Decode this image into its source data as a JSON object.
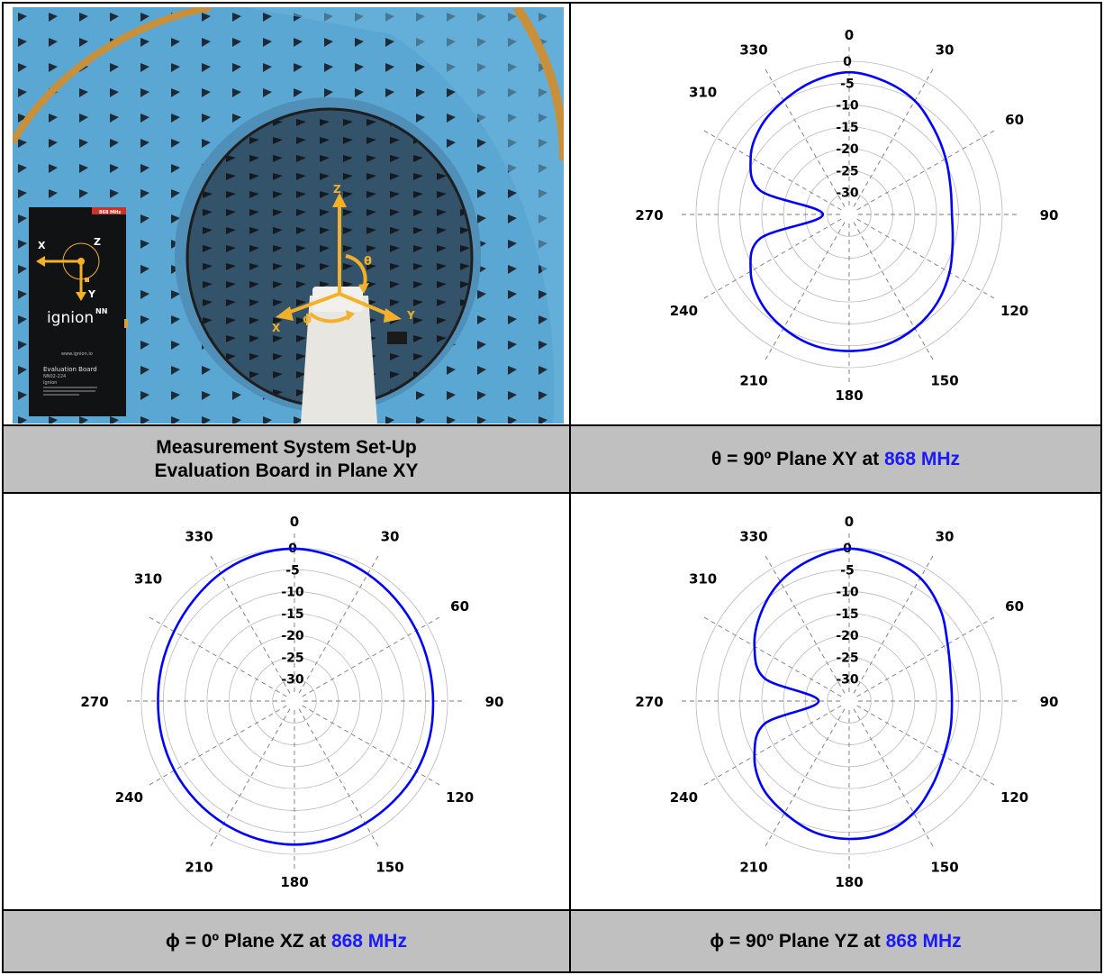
{
  "photo": {
    "axes": {
      "x": "X",
      "y": "Y",
      "z": "Z",
      "theta": "θ",
      "phi": "ϕ"
    },
    "board": {
      "axes": {
        "x": "X",
        "y": "Y",
        "z": "Z"
      },
      "brand": "ignion",
      "brand_mark": "NN",
      "website": "www.ignion.io",
      "title": "Evaluation Board",
      "part": "NN02-224",
      "company": "Ignion",
      "tag": "868 MHz"
    },
    "colors": {
      "chamber": "#5aa7d3",
      "absorber": "#23272c",
      "axes": "#f3b12a"
    }
  },
  "captions": {
    "setup": {
      "line1": "Measurement System Set-Up",
      "line2": "Evaluation Board in Plane XY"
    },
    "xy": {
      "prefix": "θ = 90º Plane XY at ",
      "freq": "868 MHz"
    },
    "xz": {
      "prefix": "ϕ = 0º Plane XZ at ",
      "freq": "868 MHz"
    },
    "yz": {
      "prefix": "ϕ = 90º Plane YZ at ",
      "freq": "868 MHz"
    }
  },
  "colors": {
    "trace": "#0000ff",
    "caption_bg": "#c0c0c0",
    "freq_text": "#1a1aff"
  },
  "chart_data": [
    {
      "id": "xy",
      "type": "polar-line",
      "angle_labels": [
        "0",
        "30",
        "60",
        "90",
        "120",
        "150",
        "180",
        "210",
        "240",
        "270",
        "310",
        "330"
      ],
      "radial_labels": [
        "0",
        "-5",
        "-10",
        "-15",
        "-20",
        "-25",
        "-30"
      ],
      "rlim": [
        -35,
        0
      ],
      "grid": true,
      "series": [
        {
          "angle_deg": [
            0,
            15,
            30,
            45,
            60,
            75,
            90,
            105,
            120,
            135,
            150,
            165,
            180,
            195,
            210,
            225,
            240,
            255,
            270,
            285,
            300,
            315,
            330,
            345
          ],
          "values": [
            -2.5,
            -3.5,
            -5,
            -7.5,
            -9.5,
            -11,
            -11.5,
            -10.5,
            -8.5,
            -6.5,
            -5,
            -4,
            -3.8,
            -4,
            -5,
            -6.5,
            -9,
            -14,
            -29,
            -14,
            -9,
            -6.5,
            -5,
            -3.5
          ]
        }
      ]
    },
    {
      "id": "xz",
      "type": "polar-line",
      "angle_labels": [
        "0",
        "30",
        "60",
        "90",
        "120",
        "150",
        "180",
        "210",
        "240",
        "270",
        "310",
        "330"
      ],
      "radial_labels": [
        "0",
        "-5",
        "-10",
        "-15",
        "-20",
        "-25",
        "-30"
      ],
      "rlim": [
        -35,
        0
      ],
      "grid": true,
      "series": [
        {
          "angle_deg": [
            0,
            15,
            30,
            45,
            60,
            75,
            90,
            105,
            120,
            135,
            150,
            165,
            180,
            195,
            210,
            225,
            240,
            255,
            270,
            285,
            300,
            315,
            330,
            345
          ],
          "values": [
            -0.2,
            -0.8,
            -1.5,
            -2.2,
            -2.8,
            -3.2,
            -3.3,
            -3,
            -2.8,
            -2.8,
            -2.7,
            -2.4,
            -2.2,
            -2.4,
            -2.7,
            -3,
            -3.3,
            -3.6,
            -3.8,
            -3.6,
            -3.2,
            -2.4,
            -1.3,
            -0.5
          ]
        }
      ]
    },
    {
      "id": "yz",
      "type": "polar-line",
      "angle_labels": [
        "0",
        "30",
        "60",
        "90",
        "120",
        "150",
        "180",
        "210",
        "240",
        "270",
        "310",
        "330"
      ],
      "radial_labels": [
        "0",
        "-5",
        "-10",
        "-15",
        "-20",
        "-25",
        "-30"
      ],
      "rlim": [
        -35,
        0
      ],
      "grid": true,
      "series": [
        {
          "angle_deg": [
            0,
            15,
            30,
            45,
            60,
            75,
            90,
            105,
            120,
            135,
            150,
            165,
            180,
            195,
            210,
            225,
            240,
            255,
            270,
            285,
            300,
            315,
            330,
            345
          ],
          "values": [
            -0.2,
            -1.2,
            -2.5,
            -5.5,
            -9,
            -11,
            -11.5,
            -11,
            -10,
            -8,
            -5.5,
            -3.8,
            -3.5,
            -4,
            -5.5,
            -7,
            -10,
            -15,
            -28,
            -15,
            -10,
            -6.5,
            -3.5,
            -1.5
          ]
        }
      ]
    }
  ]
}
